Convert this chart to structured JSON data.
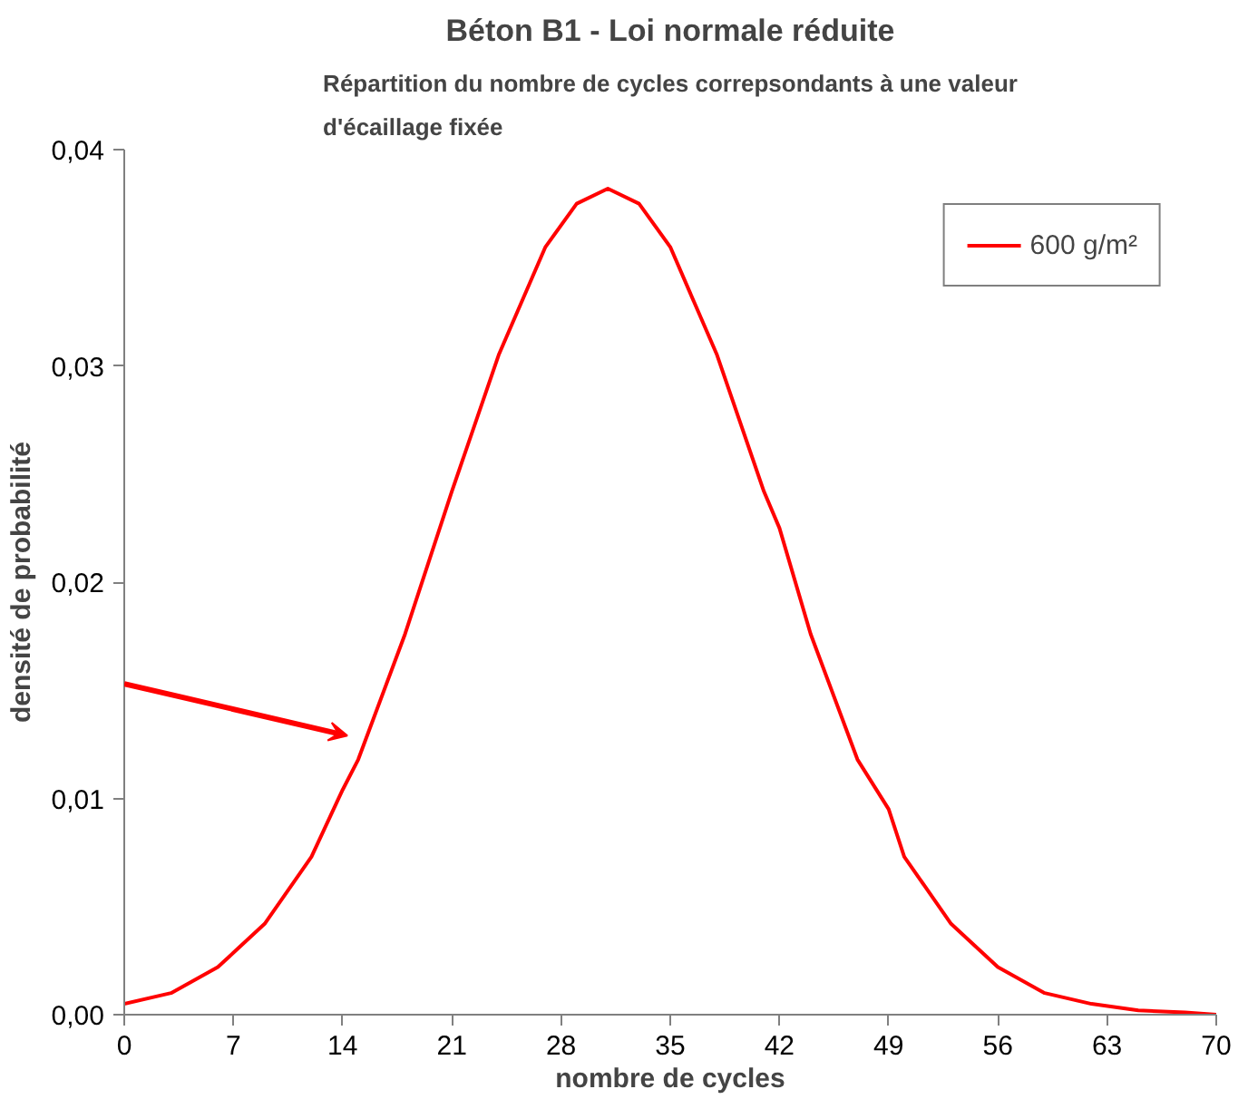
{
  "chart_data": {
    "type": "line",
    "title": "Béton B1 - Loi normale réduite",
    "subtitle": "Répartition du nombre de cycles correpsondants à une valeur\nd'écaillage fixée",
    "xlabel": "nombre de cycles",
    "ylabel": "densité de probabilité",
    "series": [
      {
        "name": "600 g/m²",
        "color": "#ff0000",
        "x": [
          0,
          3,
          6,
          9,
          12,
          14,
          15,
          18,
          21,
          24,
          27,
          29,
          31,
          33,
          35,
          38,
          41,
          42,
          44,
          47,
          49,
          50,
          53,
          56,
          59,
          62,
          65,
          68,
          70
        ],
        "values": [
          0.0005,
          0.001,
          0.0022,
          0.0042,
          0.0073,
          0.0104,
          0.0118,
          0.0176,
          0.0242,
          0.0305,
          0.0355,
          0.0375,
          0.0382,
          0.0375,
          0.0355,
          0.0305,
          0.0242,
          0.0225,
          0.0176,
          0.0118,
          0.0095,
          0.0073,
          0.0042,
          0.0022,
          0.001,
          0.0005,
          0.0002,
          0.0001,
          0.0
        ]
      }
    ],
    "xlim": [
      0,
      70
    ],
    "xticks": [
      0,
      7,
      14,
      21,
      28,
      35,
      42,
      49,
      56,
      63,
      70
    ],
    "ylim": [
      0,
      0.04
    ],
    "yticks": [
      {
        "value": 0,
        "label": "0,00"
      },
      {
        "value": 0.01,
        "label": "0,01"
      },
      {
        "value": 0.02,
        "label": "0,02"
      },
      {
        "value": 0.03,
        "label": "0,03"
      },
      {
        "value": 0.04,
        "label": "0,04"
      }
    ],
    "grid": false,
    "legend": "top right",
    "marker": "none",
    "line_style": "solid"
  }
}
